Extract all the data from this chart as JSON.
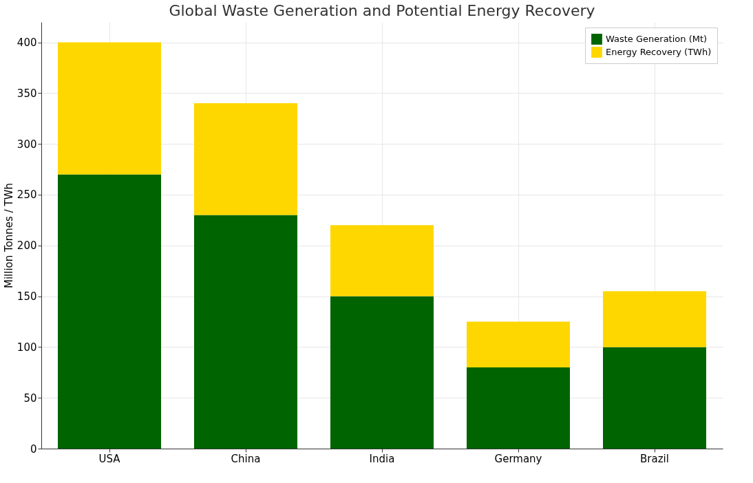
{
  "chart_data": {
    "type": "bar",
    "title": "Global Waste Generation and Potential Energy Recovery",
    "ylabel": "Million Tonnes / TWh",
    "categories": [
      "USA",
      "China",
      "India",
      "Germany",
      "Brazil"
    ],
    "series": [
      {
        "name": "Waste Generation (Mt)",
        "color": "#006400",
        "values": [
          270,
          230,
          150,
          80,
          100
        ]
      },
      {
        "name": "Energy Recovery (TWh)",
        "color": "#ffd700",
        "values": [
          130,
          110,
          70,
          45,
          55
        ]
      }
    ],
    "stacked": true,
    "ylim": [
      0,
      420
    ],
    "yticks": [
      0,
      50,
      100,
      150,
      200,
      250,
      300,
      350,
      400
    ],
    "grid": true,
    "legend": "top right"
  }
}
